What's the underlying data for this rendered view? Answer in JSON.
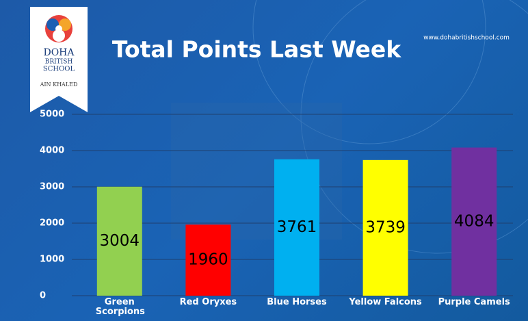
{
  "logo": {
    "name_lines": [
      "DOHA",
      "BRITISH",
      "SCHOOL"
    ],
    "campus": "AIN KHALED"
  },
  "website": "www.dohabritishschool.com",
  "chart_data": {
    "type": "bar",
    "title": "Total Points Last Week",
    "categories": [
      "Green Scorpions",
      "Red Oryxes",
      "Blue Horses",
      "Yellow Falcons",
      "Purple Camels"
    ],
    "values": [
      3004,
      1960,
      3761,
      3739,
      4084
    ],
    "colors": [
      "#92d050",
      "#ff0000",
      "#00b0f0",
      "#ffff00",
      "#7030a0"
    ],
    "ylim": [
      0,
      5000
    ],
    "yticks": [
      0,
      1000,
      2000,
      3000,
      4000,
      5000
    ],
    "grid": true
  }
}
